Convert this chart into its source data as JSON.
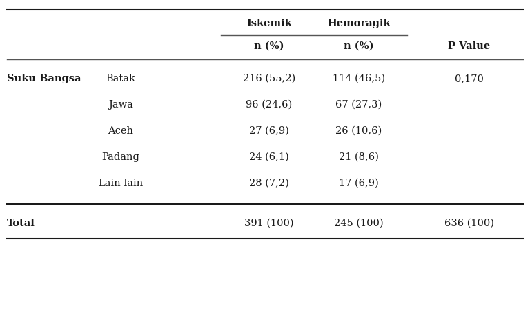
{
  "rows": [
    {
      "label1": "Suku Bangsa",
      "label2": "Batak",
      "iskemik": "216 (55,2)",
      "hemoragik": "114 (46,5)",
      "pvalue": "0,170"
    },
    {
      "label1": "",
      "label2": "Jawa",
      "iskemik": "96 (24,6)",
      "hemoragik": "67 (27,3)",
      "pvalue": ""
    },
    {
      "label1": "",
      "label2": "Aceh",
      "iskemik": "27 (6,9)",
      "hemoragik": "26 (10,6)",
      "pvalue": ""
    },
    {
      "label1": "",
      "label2": "Padang",
      "iskemik": "24 (6,1)",
      "hemoragik": "21 (8,6)",
      "pvalue": ""
    },
    {
      "label1": "",
      "label2": "Lain-lain",
      "iskemik": "28 (7,2)",
      "hemoragik": "17 (6,9)",
      "pvalue": ""
    }
  ],
  "total_row": {
    "label": "Total",
    "iskemik": "391 (100)",
    "hemoragik": "245 (100)",
    "pvalue": "636 (100)"
  },
  "background_color": "#ffffff",
  "text_color": "#1a1a1a",
  "font_size": 10.5
}
